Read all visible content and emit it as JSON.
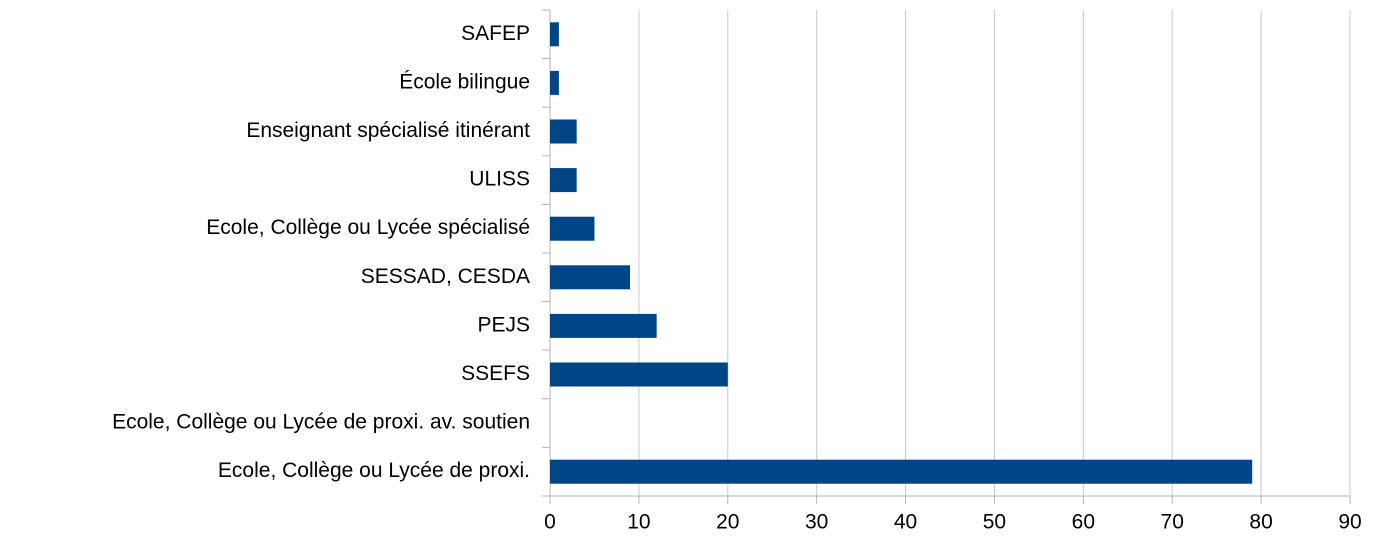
{
  "chart_data": {
    "type": "bar",
    "orientation": "horizontal",
    "categories": [
      "SAFEP",
      "École bilingue",
      "Enseignant spécialisé itinérant",
      "ULISS",
      "Ecole, Collège ou Lycée spécialisé",
      "SESSAD, CESDA",
      "PEJS",
      "SSEFS",
      "Ecole, Collège ou Lycée de proxi. av. soutien",
      "Ecole, Collège ou Lycée de proxi."
    ],
    "values": [
      1,
      1,
      3,
      3,
      5,
      9,
      12,
      20,
      0,
      79
    ],
    "color": "#004586",
    "xlim": [
      0,
      90
    ],
    "xticks": [
      0,
      10,
      20,
      30,
      40,
      50,
      60,
      70,
      80,
      90
    ],
    "grid": true
  }
}
